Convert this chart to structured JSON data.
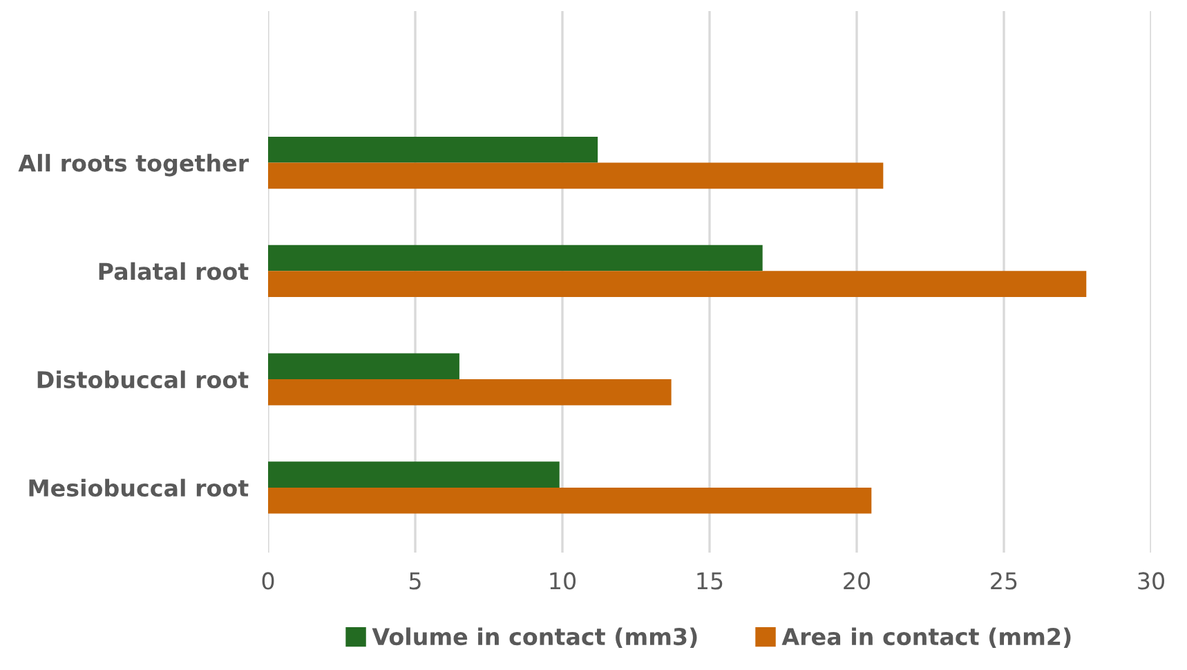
{
  "chart_data": {
    "type": "bar",
    "orientation": "horizontal",
    "categories": [
      "All roots together",
      "Palatal root",
      "Distobuccal root",
      "Mesiobuccal root"
    ],
    "series": [
      {
        "name": "Volume in contact (mm3)",
        "color": "#236b22",
        "values": [
          11.2,
          16.8,
          6.5,
          9.9
        ]
      },
      {
        "name": "Area in contact (mm2)",
        "color": "#c96708",
        "values": [
          20.9,
          27.8,
          13.7,
          20.5
        ]
      }
    ],
    "xlim": [
      0,
      30
    ],
    "xticks": [
      0,
      5,
      10,
      15,
      20,
      25,
      30
    ],
    "grid": "x",
    "legend": "bottom"
  }
}
